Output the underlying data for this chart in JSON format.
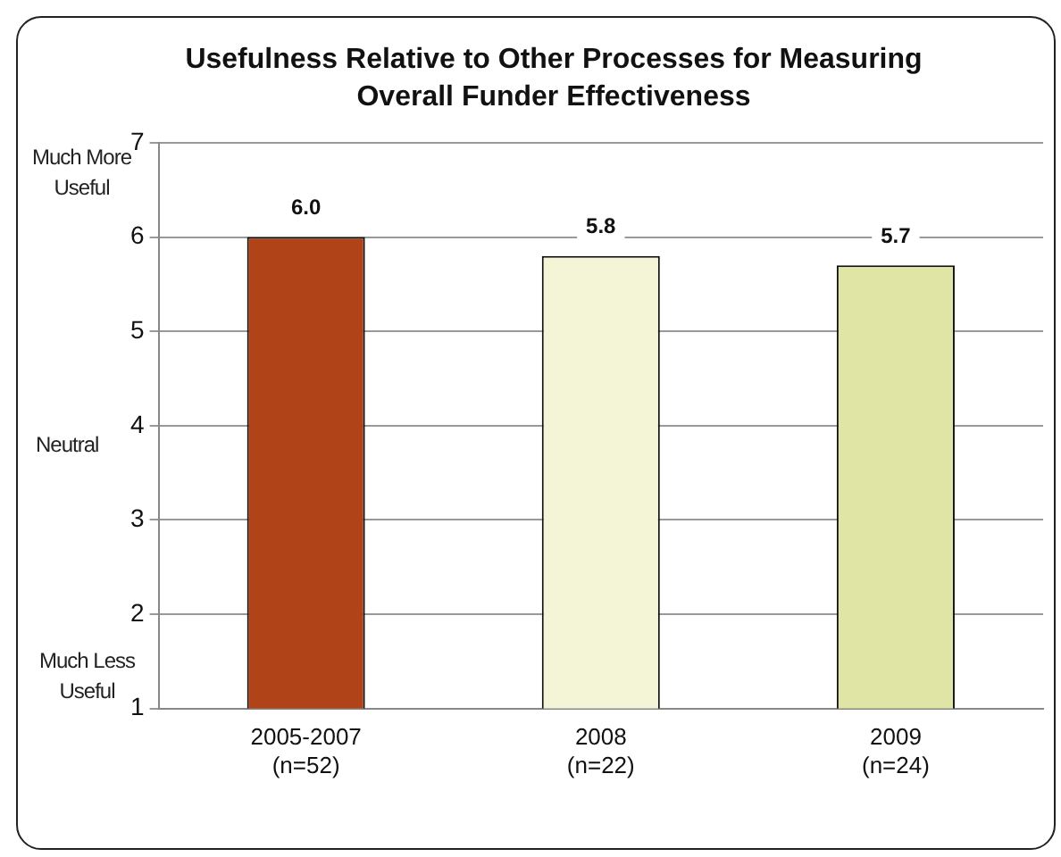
{
  "chart_data": {
    "type": "bar",
    "title": "Usefulness Relative to Other Processes for Measuring Overall Funder Effectiveness",
    "categories": [
      "2005-2007\n(n=52)",
      "2008\n(n=22)",
      "2009\n(n=24)"
    ],
    "values": [
      6.0,
      5.8,
      5.7
    ],
    "colors": [
      "#b04418",
      "#f4f5d6",
      "#e0e4a4"
    ],
    "ylim": [
      1,
      7
    ],
    "yticks": [
      1,
      2,
      3,
      4,
      5,
      6,
      7
    ],
    "grid": "y",
    "value_labels": [
      "6.0",
      "5.8",
      "5.7"
    ],
    "legend": false,
    "annotations": [
      "Much More\nUseful",
      "Neutral",
      "Much Less\nUseful"
    ]
  }
}
